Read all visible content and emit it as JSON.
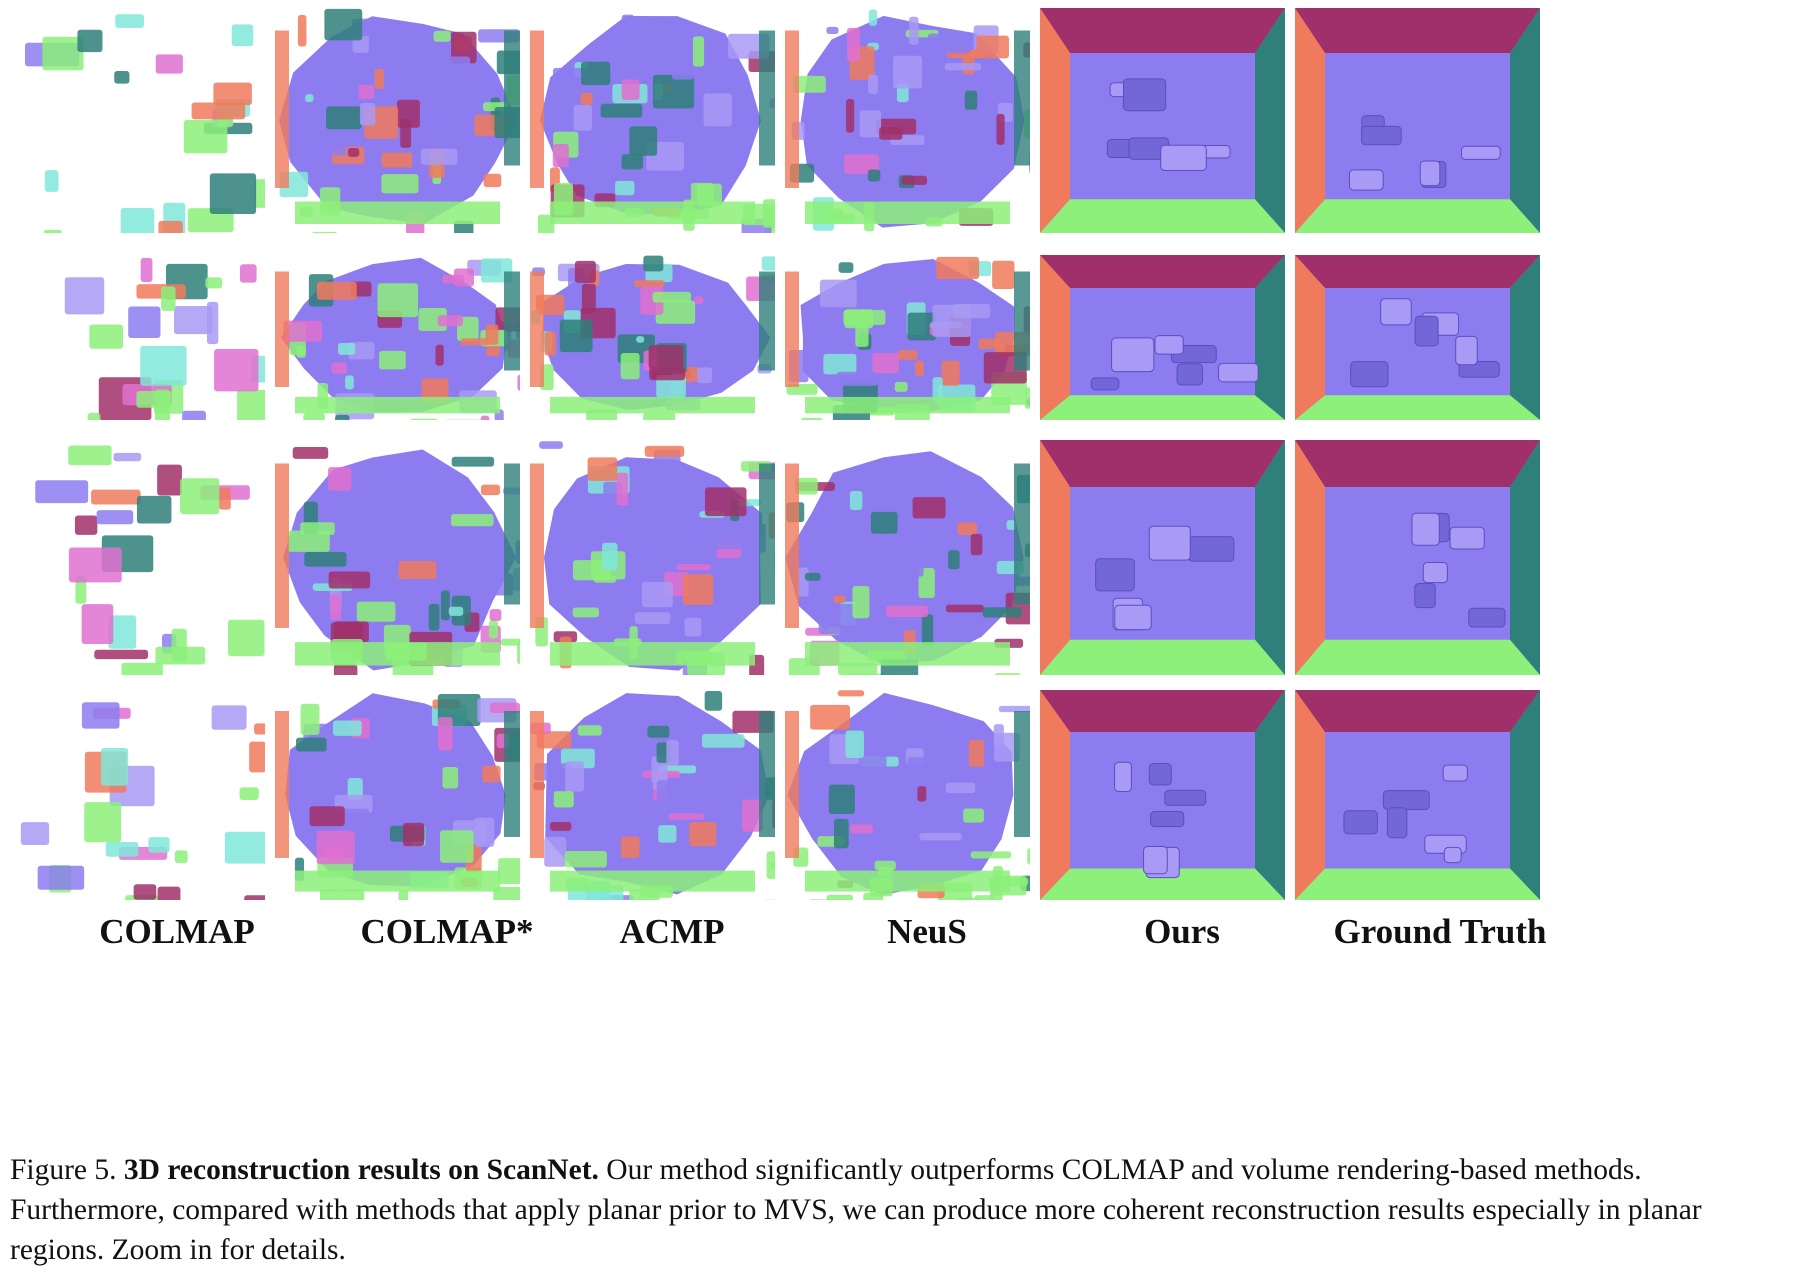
{
  "figure": {
    "columns": [
      {
        "label": "COLMAP"
      },
      {
        "label": "COLMAP*"
      },
      {
        "label": "ACMP"
      },
      {
        "label": "NeuS"
      },
      {
        "label": "Ours"
      },
      {
        "label": "Ground Truth"
      }
    ],
    "rows": 4,
    "colors": {
      "floor": "#8c7cf0",
      "floor_light": "#a89af5",
      "wall_left": "#f07a5c",
      "wall_top": "#a0306a",
      "wall_right": "#2f7f7a",
      "ground_bottom": "#8cf07a",
      "cyan": "#80e6d8",
      "pink": "#e070d0"
    },
    "caption": {
      "prefix": "Figure 5. ",
      "title": "3D reconstruction results on ScanNet.",
      "body": " Our method significantly outperforms COLMAP and volume rendering-based methods. Furthermore, compared with methods that apply planar prior to MVS, we can produce more coherent reconstruction results especially in planar regions. Zoom in for details."
    }
  }
}
